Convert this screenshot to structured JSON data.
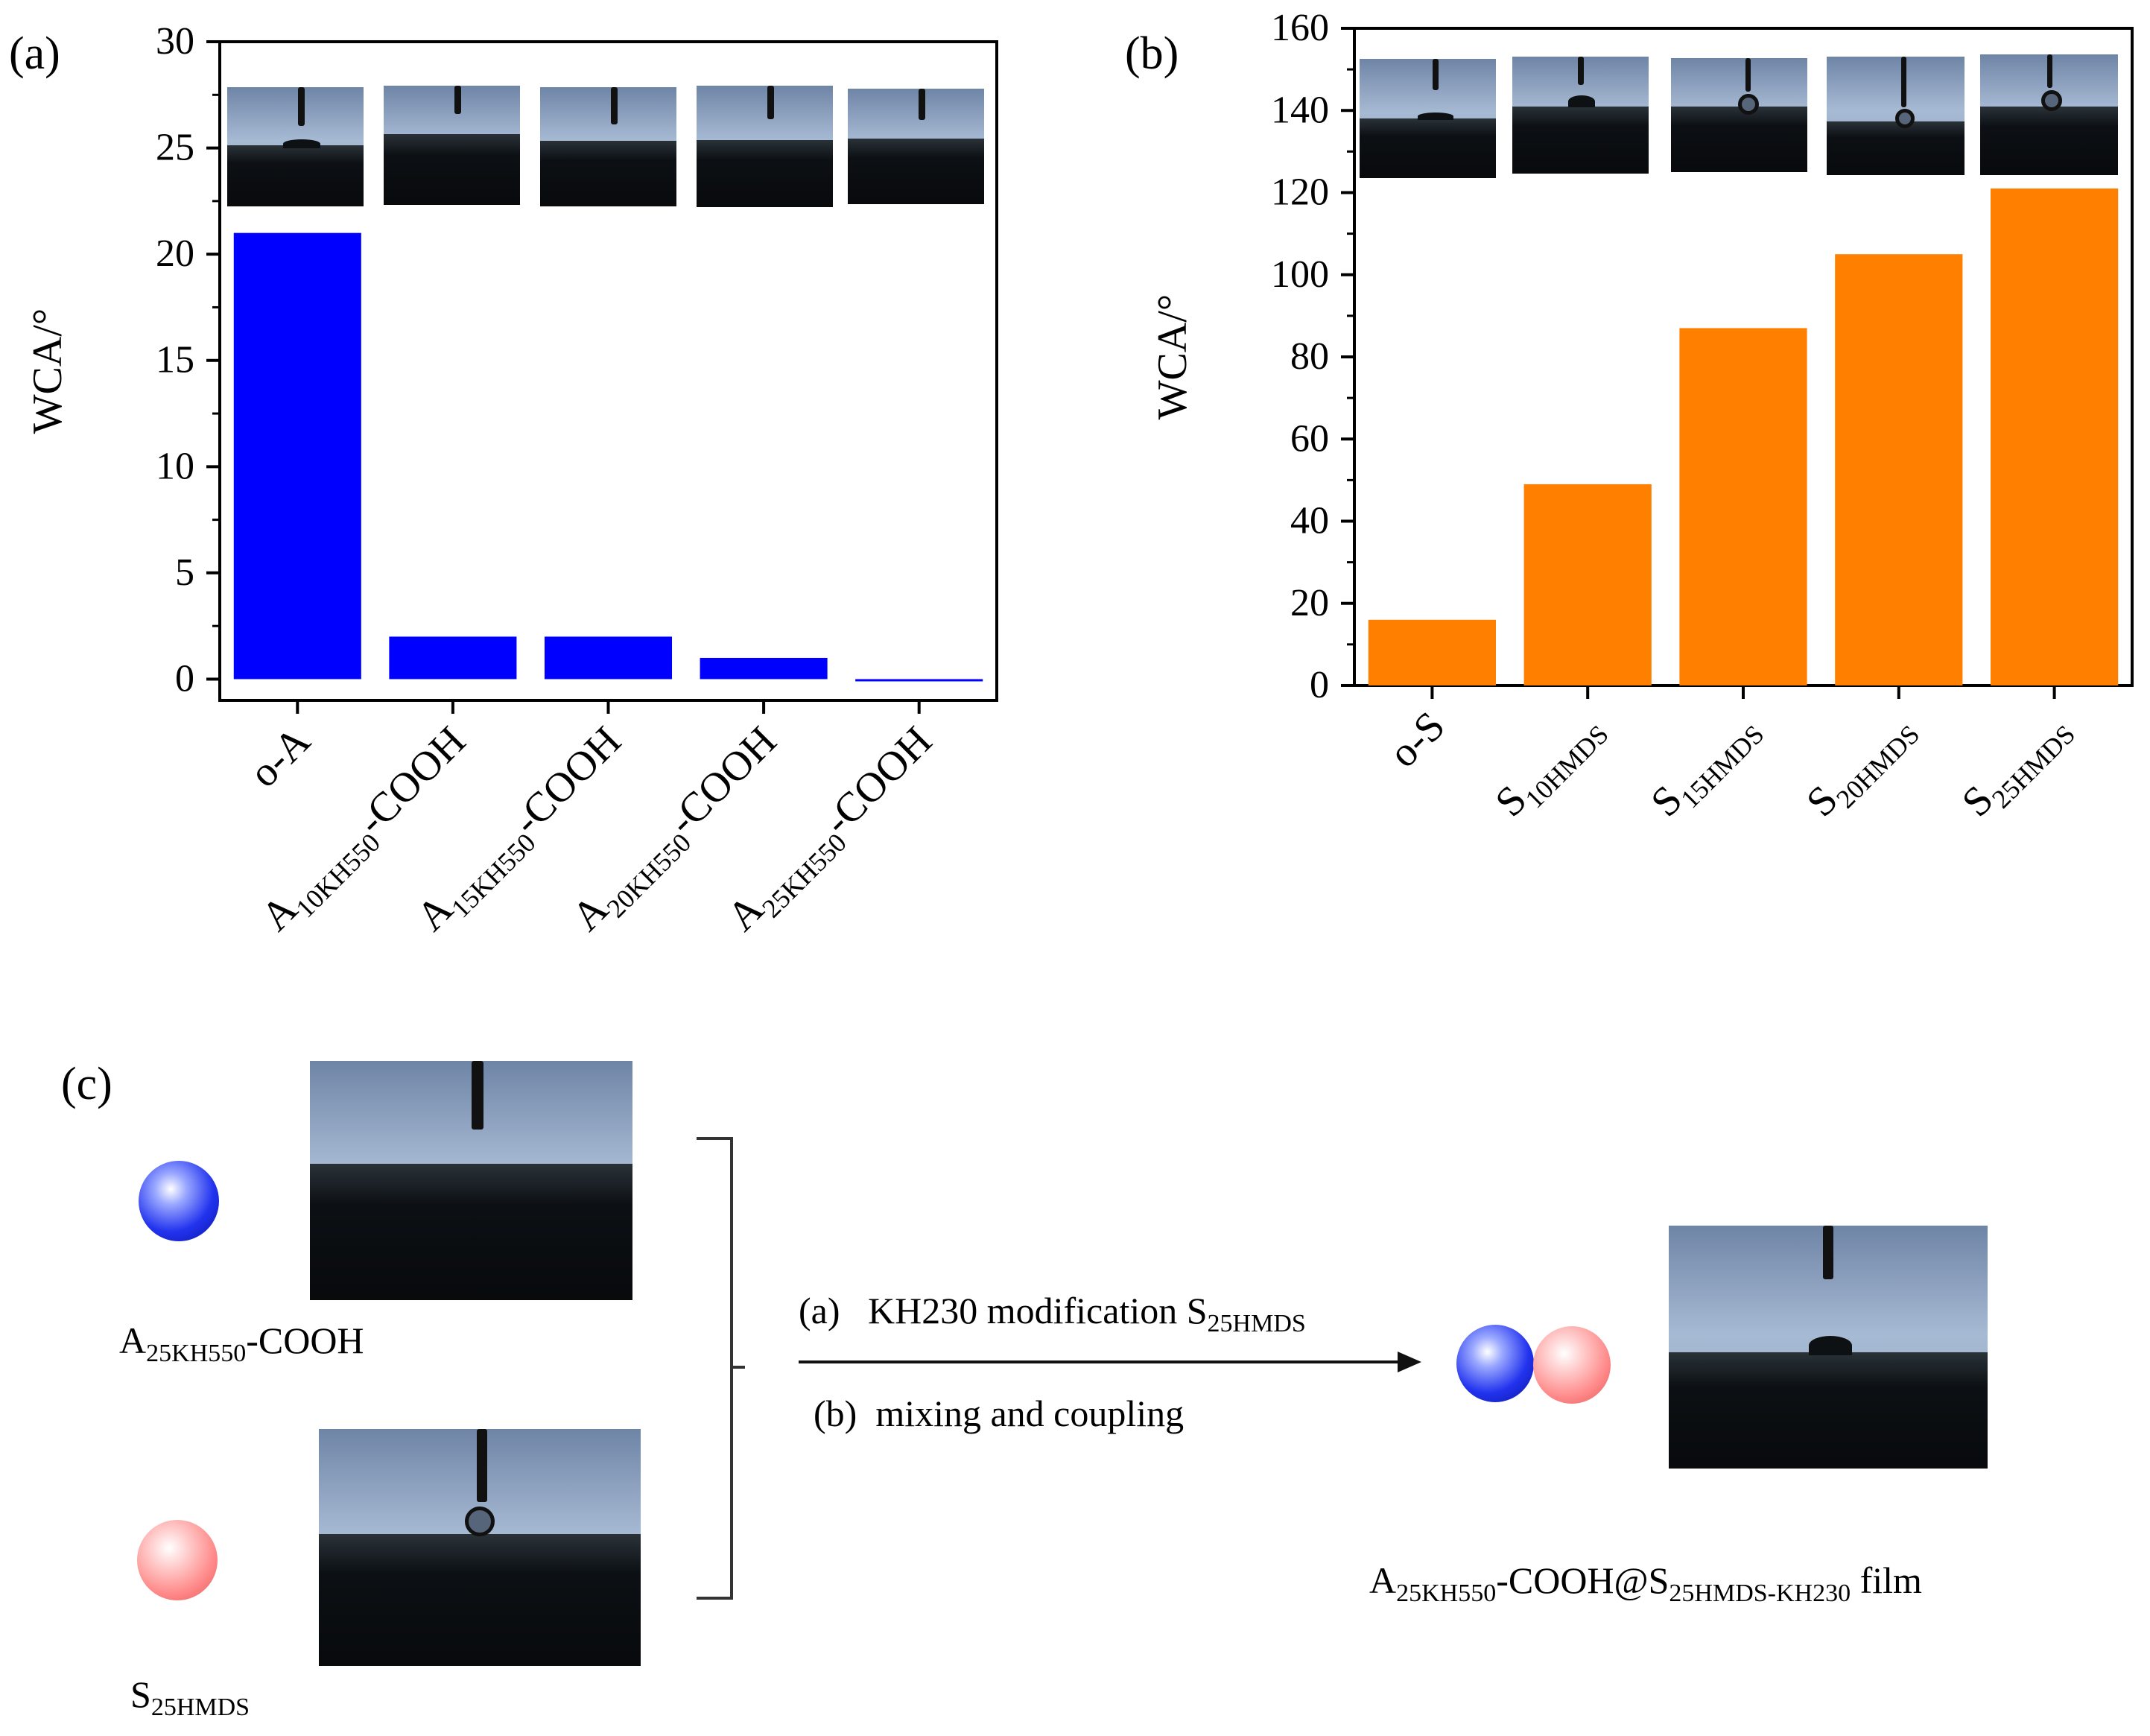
{
  "panels": {
    "a": {
      "label": "(a)"
    },
    "b": {
      "label": "(b)"
    },
    "c": {
      "label": "(c)"
    }
  },
  "chart_data": [
    {
      "panel": "(a)",
      "type": "bar",
      "categories": [
        "o-A",
        "A10KH550-COOH",
        "A15KH550-COOH",
        "A20KH550-COOH",
        "A25KH550-COOH"
      ],
      "category_labels": [
        [
          {
            "t": "o-A"
          }
        ],
        [
          {
            "t": "A"
          },
          {
            "t": "10KH550",
            "sub": true
          },
          {
            "t": "-COOH"
          }
        ],
        [
          {
            "t": "A"
          },
          {
            "t": "15KH550",
            "sub": true
          },
          {
            "t": "-COOH"
          }
        ],
        [
          {
            "t": "A"
          },
          {
            "t": "20KH550",
            "sub": true
          },
          {
            "t": "-COOH"
          }
        ],
        [
          {
            "t": "A"
          },
          {
            "t": "25KH550",
            "sub": true
          },
          {
            "t": "-COOH"
          }
        ]
      ],
      "values": [
        21,
        2,
        2,
        1,
        0
      ],
      "bar_color": "#0000ff",
      "ylabel": "WCA/°",
      "ylim": [
        -1,
        30
      ],
      "yticks": [
        "0",
        "5",
        "10",
        "15",
        "20",
        "25",
        "30"
      ],
      "ytick_values": [
        0,
        5,
        10,
        15,
        20,
        25,
        30
      ],
      "insets": "contact-angle droplet photos above each bar",
      "grid": false
    },
    {
      "panel": "(b)",
      "type": "bar",
      "categories": [
        "o-S",
        "S10HMDS",
        "S15HMDS",
        "S20HMDS",
        "S25HMDS"
      ],
      "category_labels": [
        [
          {
            "t": "o-S"
          }
        ],
        [
          {
            "t": "S"
          },
          {
            "t": "10HMDS",
            "sub": true
          }
        ],
        [
          {
            "t": "S"
          },
          {
            "t": "15HMDS",
            "sub": true
          }
        ],
        [
          {
            "t": "S"
          },
          {
            "t": "20HMDS",
            "sub": true
          }
        ],
        [
          {
            "t": "S"
          },
          {
            "t": "25HMDS",
            "sub": true
          }
        ]
      ],
      "values": [
        16,
        49,
        87,
        105,
        121
      ],
      "bar_color": "#ff8000",
      "ylabel": "WCA/°",
      "ylim": [
        0,
        160
      ],
      "yticks": [
        "0",
        "20",
        "40",
        "60",
        "80",
        "100",
        "120",
        "140",
        "160"
      ],
      "ytick_values": [
        0,
        20,
        40,
        60,
        80,
        100,
        120,
        140,
        160
      ],
      "insets": "contact-angle droplet photos above each bar",
      "grid": false
    }
  ],
  "schematic": {
    "material_1": {
      "base": "A",
      "sub": "25KH550",
      "suffix": "-COOH",
      "color": "#1a2be0"
    },
    "material_2": {
      "base": "S",
      "sub": "25HMDS",
      "suffix": "",
      "color": "#ff8f8f"
    },
    "step_a": {
      "prefix": "(a)",
      "text": "KH230 modification S",
      "sub": "25HMDS"
    },
    "step_b": {
      "prefix": "(b)",
      "text": "mixing and coupling"
    },
    "product": {
      "base": "A",
      "sub1": "25KH550",
      "mid": "-COOH@S",
      "sub2": "25HMDS-KH230",
      "suffix": " film"
    }
  }
}
